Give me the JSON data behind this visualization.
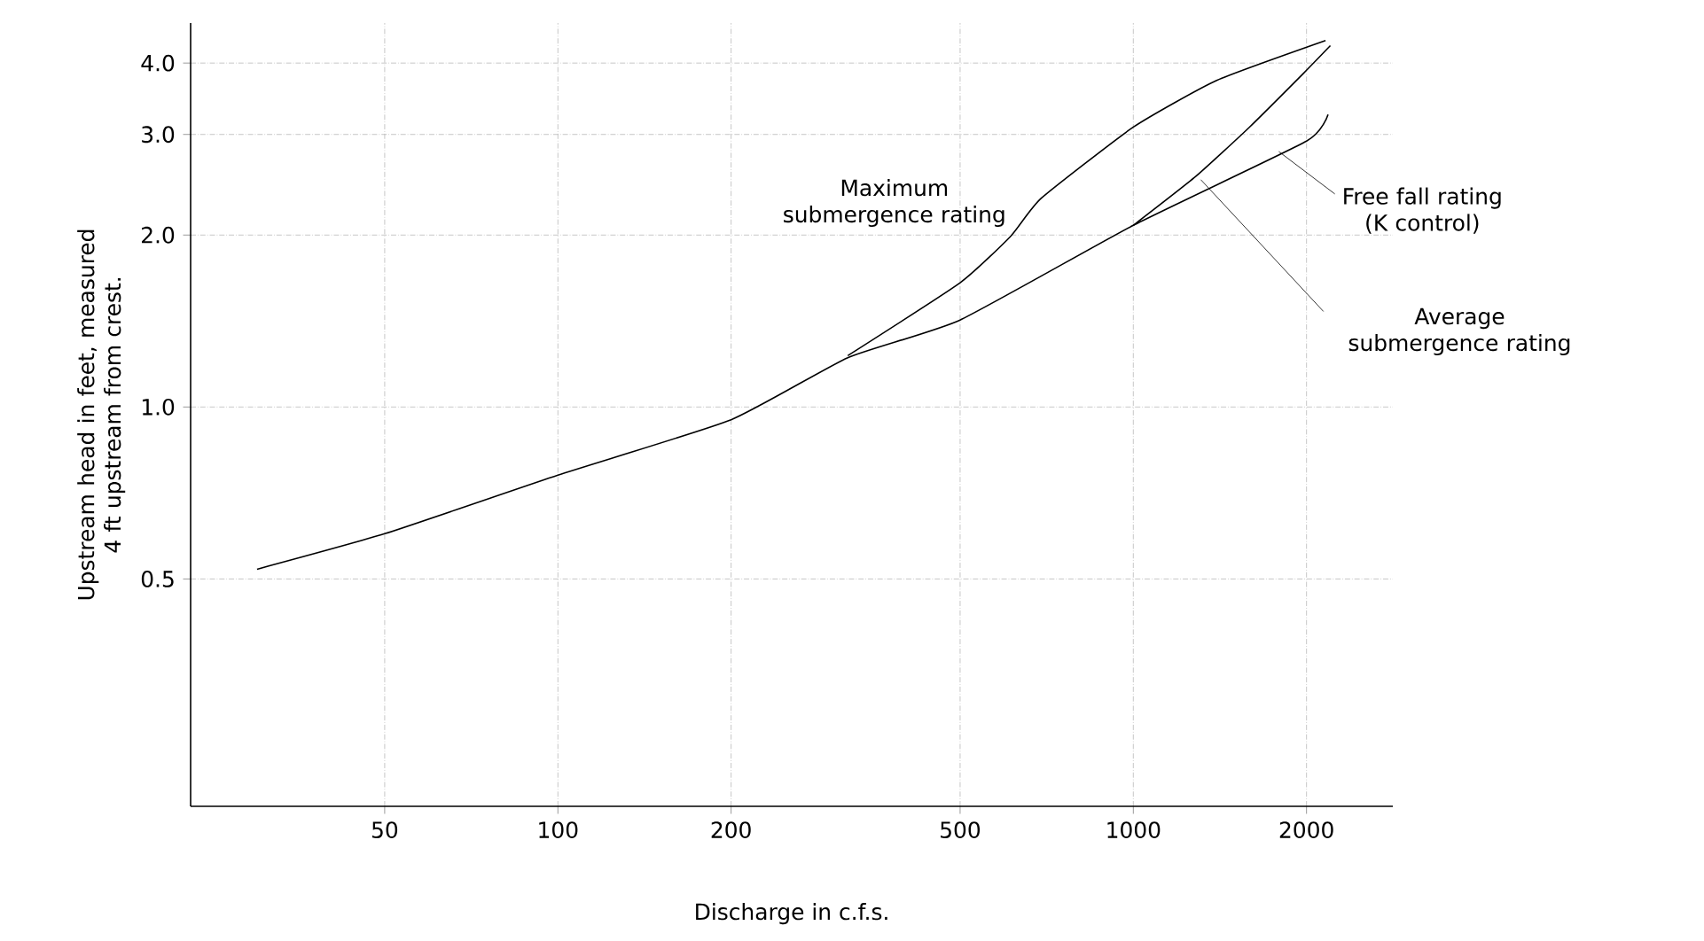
{
  "chart_data": {
    "type": "line",
    "xlabel": "Discharge in c.f.s.",
    "ylabel": "Upstream head in feet, measured 4 ft upstream from crest.",
    "log": "xy",
    "grid": true,
    "legend": false,
    "marker": "none",
    "line_style": "solid",
    "xlim": [
      23,
      2825
    ],
    "ylim": [
      0.2,
      4.7
    ],
    "xticks": [
      50,
      100,
      200,
      500,
      1000,
      2000
    ],
    "yticks": [
      {
        "value": 0.5,
        "label": "0.5"
      },
      {
        "value": 1,
        "label": "1.0"
      },
      {
        "value": 2,
        "label": "2.0"
      },
      {
        "value": 3,
        "label": "3.0"
      },
      {
        "value": 4,
        "label": "4.0"
      }
    ],
    "series": [
      {
        "name": "Maximum submergence rating",
        "color": "#000000",
        "x": [
          319,
          500,
          612,
          692,
          1000,
          1396,
          2158
        ],
        "values": [
          1.23,
          1.65,
          1.99,
          2.32,
          3.09,
          3.73,
          4.38
        ]
      },
      {
        "name": "Free fall rating (K control)",
        "color": "#000000",
        "x": [
          30,
          50,
          100,
          200,
          319,
          500,
          1000,
          2000,
          2180
        ],
        "values": [
          0.52,
          0.6,
          0.76,
          0.95,
          1.22,
          1.42,
          2.08,
          2.92,
          3.25
        ]
      },
      {
        "name": "Average submergence rating",
        "color": "#000000",
        "x": [
          1000,
          1282,
          1592,
          1977,
          2200
        ],
        "values": [
          2.08,
          2.53,
          3.09,
          3.84,
          4.29
        ]
      }
    ]
  }
}
